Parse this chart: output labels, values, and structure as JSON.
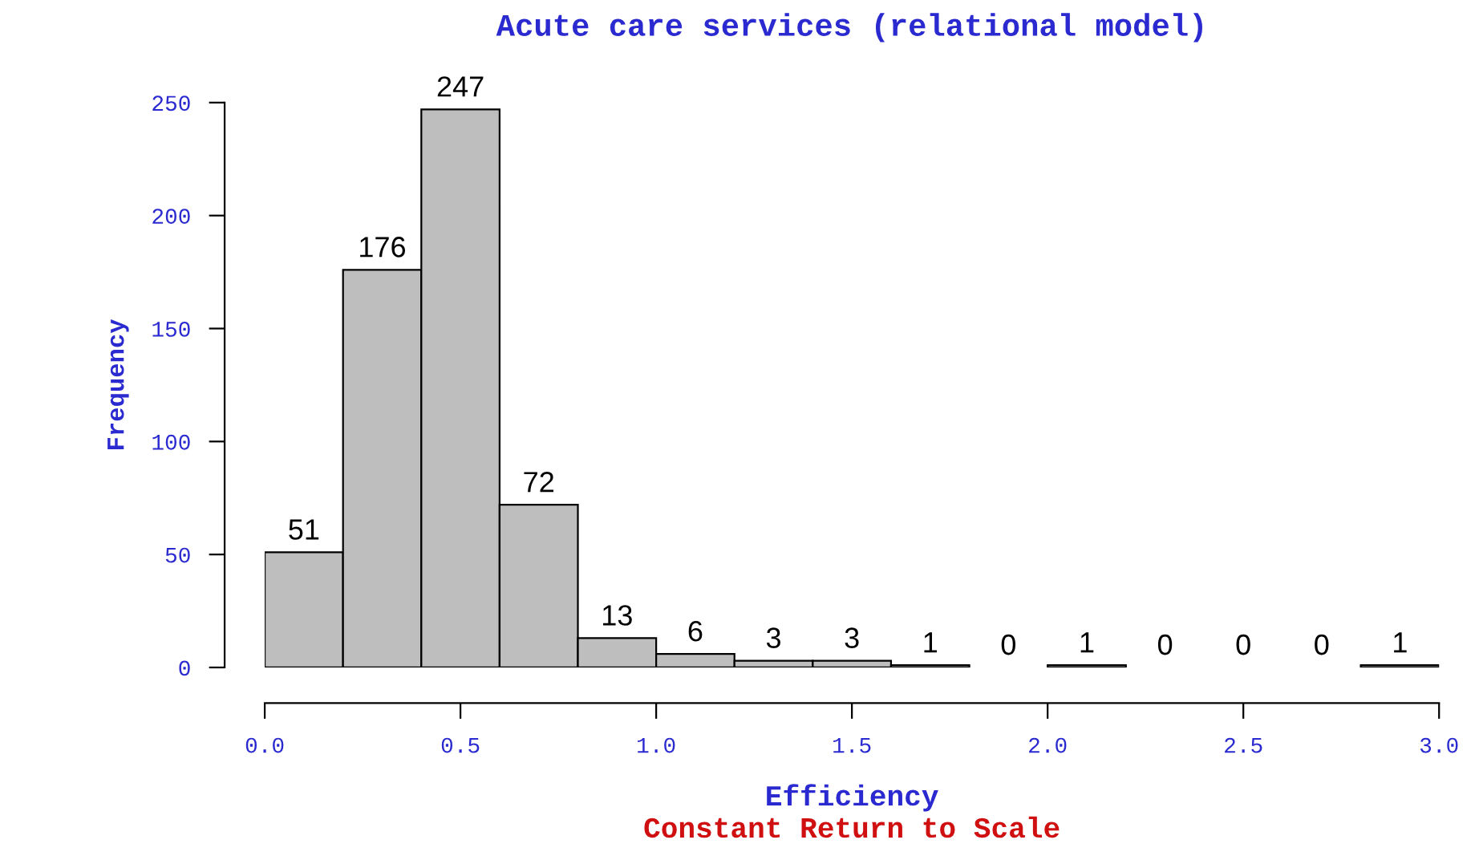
{
  "chart_data": {
    "type": "histogram",
    "title": "Acute care services (relational model)",
    "xlabel": "Efficiency",
    "ylabel": "Frequency",
    "bins": [
      0.0,
      0.2,
      0.4,
      0.6,
      0.8,
      1.0,
      1.2,
      1.4,
      1.6,
      1.8,
      2.0,
      2.2,
      2.4,
      2.6,
      2.8,
      3.0
    ],
    "values": [
      51,
      176,
      247,
      72,
      13,
      6,
      3,
      3,
      1,
      0,
      1,
      0,
      0,
      0,
      1
    ],
    "color": "#bebebe",
    "data_labels": true,
    "xlim": [
      0,
      3
    ],
    "xticks": [
      {
        "value": 0,
        "label": "0.0"
      },
      {
        "value": 0.5,
        "label": "0.5"
      },
      {
        "value": 1,
        "label": "1.0"
      },
      {
        "value": 1.5,
        "label": "1.5"
      },
      {
        "value": 2,
        "label": "2.0"
      },
      {
        "value": 2.5,
        "label": "2.5"
      },
      {
        "value": 3,
        "label": "3.0"
      }
    ],
    "ylim": [
      0,
      250
    ],
    "yticks": [
      0,
      50,
      100,
      150,
      200,
      250
    ],
    "grid": false,
    "legend": false,
    "annotations": [
      "Constant Return to Scale"
    ]
  }
}
